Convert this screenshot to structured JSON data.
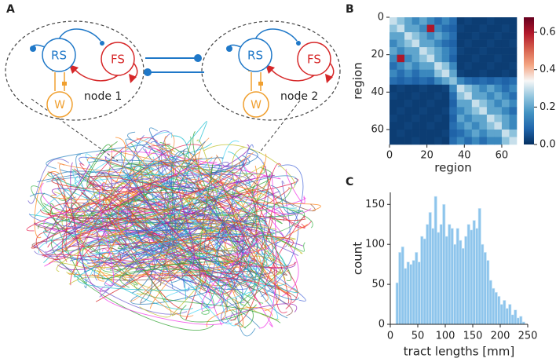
{
  "panel_labels": [
    "A",
    "B",
    "C"
  ],
  "diagram": {
    "nodes": [
      {
        "label": "node 1",
        "populations": [
          "RS",
          "FS",
          "W"
        ]
      },
      {
        "label": "node 2",
        "populations": [
          "RS",
          "FS",
          "W"
        ]
      }
    ]
  },
  "chart_data": [
    {
      "type": "heatmap",
      "x": [
        0,
        4,
        8,
        12,
        16,
        20,
        24,
        28,
        32,
        36,
        40,
        44,
        48,
        52,
        56,
        60,
        64,
        68
      ],
      "y": [
        0,
        4,
        8,
        12,
        16,
        20,
        24,
        28,
        32,
        36,
        40,
        44,
        48,
        52,
        56,
        60,
        64,
        68
      ],
      "values": [
        [
          0.3,
          0.25,
          0.2,
          0.15,
          0.2,
          0.15,
          0.1,
          0.15,
          0.1,
          0.02,
          0.03,
          0.02,
          0.02,
          0.03,
          0.02,
          0.02,
          0.02
        ],
        [
          0.25,
          0.3,
          0.2,
          0.2,
          0.15,
          0.6,
          0.15,
          0.1,
          0.08,
          0.03,
          0.02,
          0.02,
          0.03,
          0.02,
          0.02,
          0.03,
          0.02
        ],
        [
          0.2,
          0.2,
          0.3,
          0.25,
          0.2,
          0.15,
          0.2,
          0.15,
          0.1,
          0.02,
          0.02,
          0.03,
          0.02,
          0.02,
          0.03,
          0.02,
          0.02
        ],
        [
          0.15,
          0.2,
          0.25,
          0.3,
          0.2,
          0.2,
          0.15,
          0.1,
          0.08,
          0.02,
          0.03,
          0.02,
          0.02,
          0.03,
          0.02,
          0.02,
          0.03
        ],
        [
          0.2,
          0.15,
          0.2,
          0.2,
          0.3,
          0.25,
          0.2,
          0.15,
          0.1,
          0.03,
          0.02,
          0.02,
          0.03,
          0.02,
          0.02,
          0.02,
          0.02
        ],
        [
          0.15,
          0.6,
          0.15,
          0.2,
          0.25,
          0.3,
          0.2,
          0.15,
          0.08,
          0.02,
          0.02,
          0.03,
          0.02,
          0.02,
          0.03,
          0.02,
          0.02
        ],
        [
          0.1,
          0.15,
          0.2,
          0.15,
          0.2,
          0.2,
          0.3,
          0.25,
          0.15,
          0.02,
          0.03,
          0.02,
          0.02,
          0.03,
          0.02,
          0.02,
          0.03
        ],
        [
          0.15,
          0.1,
          0.15,
          0.1,
          0.15,
          0.15,
          0.25,
          0.3,
          0.2,
          0.03,
          0.02,
          0.02,
          0.03,
          0.02,
          0.02,
          0.03,
          0.02
        ],
        [
          0.1,
          0.08,
          0.1,
          0.08,
          0.1,
          0.08,
          0.15,
          0.2,
          0.25,
          0.15,
          0.1,
          0.08,
          0.1,
          0.08,
          0.1,
          0.08,
          0.1
        ],
        [
          0.02,
          0.03,
          0.02,
          0.02,
          0.03,
          0.02,
          0.02,
          0.03,
          0.15,
          0.3,
          0.25,
          0.2,
          0.15,
          0.2,
          0.15,
          0.1,
          0.15
        ],
        [
          0.03,
          0.02,
          0.02,
          0.03,
          0.02,
          0.02,
          0.03,
          0.02,
          0.1,
          0.25,
          0.3,
          0.2,
          0.2,
          0.15,
          0.2,
          0.15,
          0.1
        ],
        [
          0.02,
          0.02,
          0.03,
          0.02,
          0.02,
          0.03,
          0.02,
          0.02,
          0.08,
          0.2,
          0.2,
          0.3,
          0.25,
          0.2,
          0.15,
          0.2,
          0.15
        ],
        [
          0.02,
          0.03,
          0.02,
          0.02,
          0.03,
          0.02,
          0.02,
          0.03,
          0.1,
          0.15,
          0.2,
          0.25,
          0.3,
          0.2,
          0.2,
          0.15,
          0.1
        ],
        [
          0.03,
          0.02,
          0.02,
          0.03,
          0.02,
          0.02,
          0.03,
          0.02,
          0.08,
          0.2,
          0.15,
          0.2,
          0.2,
          0.3,
          0.25,
          0.2,
          0.15
        ],
        [
          0.02,
          0.02,
          0.03,
          0.02,
          0.02,
          0.03,
          0.02,
          0.02,
          0.1,
          0.15,
          0.2,
          0.15,
          0.2,
          0.25,
          0.3,
          0.2,
          0.15
        ],
        [
          0.02,
          0.03,
          0.02,
          0.02,
          0.02,
          0.02,
          0.02,
          0.03,
          0.08,
          0.1,
          0.15,
          0.2,
          0.15,
          0.2,
          0.2,
          0.3,
          0.25
        ],
        [
          0.02,
          0.02,
          0.02,
          0.03,
          0.02,
          0.02,
          0.03,
          0.02,
          0.1,
          0.15,
          0.1,
          0.15,
          0.1,
          0.15,
          0.15,
          0.25,
          0.3
        ]
      ],
      "xlim": [
        0,
        68
      ],
      "ylim": [
        0,
        68
      ],
      "y_inverted": true,
      "xticks": [
        0,
        20,
        40,
        60
      ],
      "yticks": [
        0,
        20,
        40,
        60
      ],
      "xlabel": "region",
      "ylabel": "region",
      "colormap": [
        "#053061",
        "#2166ac",
        "#4393c3",
        "#92c5de",
        "#f7f7f7",
        "#f4a582",
        "#d6604d",
        "#b2182b",
        "#67001f"
      ],
      "clim": [
        0,
        0.68
      ],
      "cticks": [
        {
          "value": 0,
          "label": "0.0"
        },
        0.2,
        0.4,
        0.6
      ]
    },
    {
      "type": "histogram",
      "bins": [
        0,
        5,
        10,
        15,
        20,
        25,
        30,
        35,
        40,
        45,
        50,
        55,
        60,
        65,
        70,
        75,
        80,
        85,
        90,
        95,
        100,
        105,
        110,
        115,
        120,
        125,
        130,
        135,
        140,
        145,
        150,
        155,
        160,
        165,
        170,
        175,
        180,
        185,
        190,
        195,
        200,
        205,
        210,
        215,
        220,
        225,
        230,
        235,
        240,
        245,
        250
      ],
      "values": [
        0,
        0,
        52,
        90,
        97,
        70,
        78,
        75,
        80,
        90,
        78,
        110,
        107,
        125,
        140,
        120,
        160,
        115,
        125,
        150,
        110,
        125,
        120,
        100,
        120,
        105,
        95,
        110,
        125,
        118,
        130,
        120,
        145,
        100,
        90,
        80,
        55,
        45,
        40,
        35,
        25,
        30,
        20,
        25,
        12,
        18,
        8,
        10,
        3,
        0
      ],
      "color": "#8ec5ec",
      "edgecolor": "#d6ebf8",
      "xlim": [
        0,
        250
      ],
      "ylim": [
        0,
        165
      ],
      "xticks": [
        0,
        50,
        100,
        150,
        200,
        250
      ],
      "yticks": [
        0,
        50,
        100,
        150
      ],
      "xlabel": "tract lengths [mm]",
      "ylabel": "count"
    }
  ]
}
